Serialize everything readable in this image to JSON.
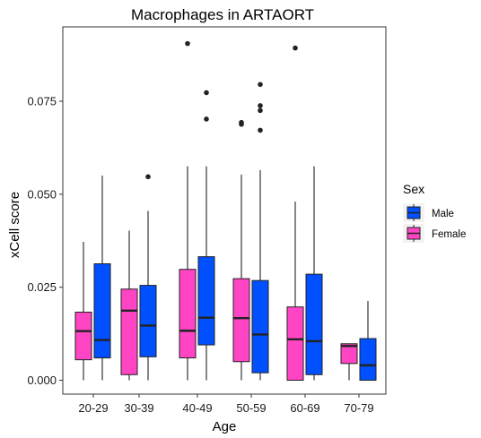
{
  "chart_data": {
    "type": "boxplot",
    "title": "Macrophages in ARTAORT",
    "xlabel": "Age",
    "ylabel": "xCell score",
    "categories": [
      "20-29",
      "30-39",
      "40-49",
      "50-59",
      "60-69",
      "70-79"
    ],
    "ylim": [
      -0.002,
      0.095
    ],
    "yticks": [
      0.0,
      0.025,
      0.05,
      0.075
    ],
    "ytick_labels": [
      "0.000",
      "0.025",
      "0.050",
      "0.075"
    ],
    "grid": false,
    "legend": {
      "title": "Sex",
      "position": "right",
      "entries": [
        "Male",
        "Female"
      ]
    },
    "series": [
      {
        "name": "Female",
        "color": "#ff44c4",
        "boxes": [
          {
            "category": "20-29",
            "whisker_low": 0.0,
            "q1": 0.0055,
            "median": 0.0132,
            "q3": 0.0183,
            "whisker_high": 0.0372,
            "outliers": []
          },
          {
            "category": "30-39",
            "whisker_low": 0.0,
            "q1": 0.0015,
            "median": 0.0187,
            "q3": 0.0245,
            "whisker_high": 0.0402,
            "outliers": []
          },
          {
            "category": "40-49",
            "whisker_low": 0.0,
            "q1": 0.006,
            "median": 0.0133,
            "q3": 0.0298,
            "whisker_high": 0.0575,
            "outliers": [
              0.0905
            ]
          },
          {
            "category": "50-59",
            "whisker_low": 0.0,
            "q1": 0.005,
            "median": 0.0167,
            "q3": 0.0273,
            "whisker_high": 0.0553,
            "outliers": [
              0.0693,
              0.0688
            ]
          },
          {
            "category": "60-69",
            "whisker_low": 0.0,
            "q1": 0.0,
            "median": 0.011,
            "q3": 0.0197,
            "whisker_high": 0.048,
            "outliers": [
              0.0893
            ]
          },
          {
            "category": "70-79",
            "whisker_low": 0.0,
            "q1": 0.0045,
            "median": 0.0092,
            "q3": 0.0098,
            "whisker_high": 0.0098,
            "outliers": []
          }
        ]
      },
      {
        "name": "Male",
        "color": "#0050ff",
        "boxes": [
          {
            "category": "20-29",
            "whisker_low": 0.0,
            "q1": 0.006,
            "median": 0.0108,
            "q3": 0.0313,
            "whisker_high": 0.055,
            "outliers": []
          },
          {
            "category": "30-39",
            "whisker_low": 0.0,
            "q1": 0.0063,
            "median": 0.0147,
            "q3": 0.0255,
            "whisker_high": 0.0455,
            "outliers": [
              0.0547
            ]
          },
          {
            "category": "40-49",
            "whisker_low": 0.0,
            "q1": 0.0095,
            "median": 0.0168,
            "q3": 0.0332,
            "whisker_high": 0.0575,
            "outliers": [
              0.0773,
              0.0702
            ]
          },
          {
            "category": "50-59",
            "whisker_low": 0.0,
            "q1": 0.002,
            "median": 0.0123,
            "q3": 0.0268,
            "whisker_high": 0.0565,
            "outliers": [
              0.0795,
              0.0738,
              0.0725,
              0.0672
            ]
          },
          {
            "category": "60-69",
            "whisker_low": 0.0,
            "q1": 0.0015,
            "median": 0.0105,
            "q3": 0.0285,
            "whisker_high": 0.0575,
            "outliers": []
          },
          {
            "category": "70-79",
            "whisker_low": 0.0,
            "q1": 0.0,
            "median": 0.004,
            "q3": 0.0112,
            "whisker_high": 0.0213,
            "outliers": []
          }
        ]
      }
    ]
  }
}
